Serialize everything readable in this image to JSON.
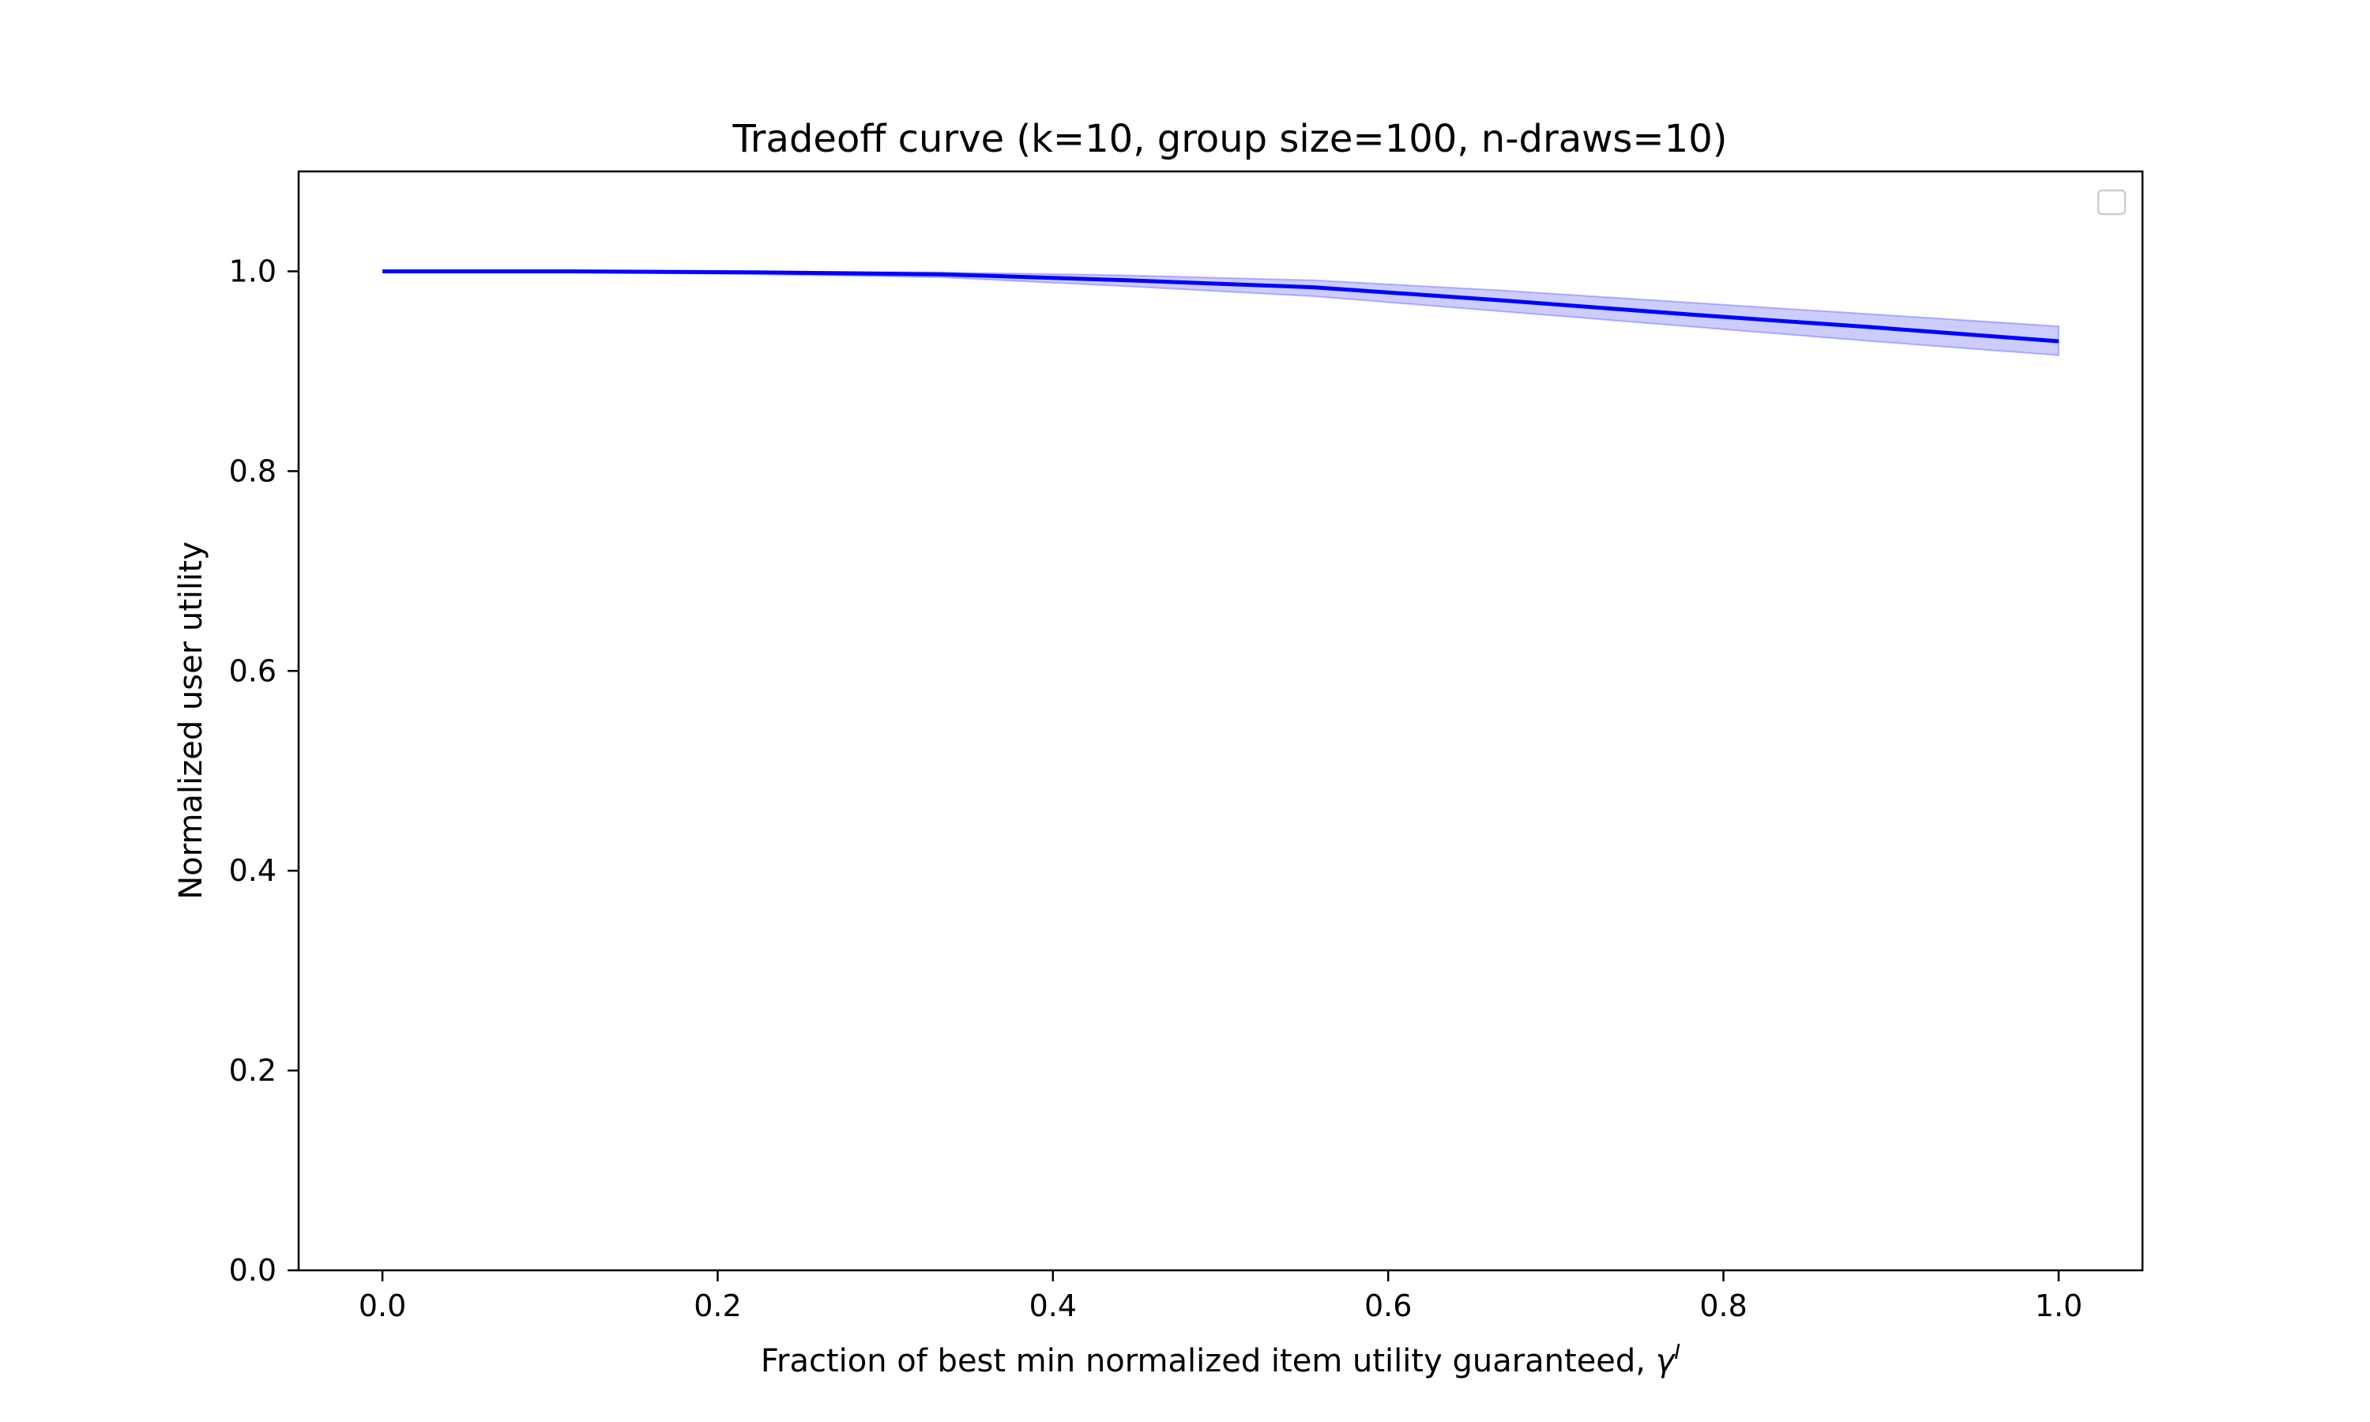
{
  "colors": {
    "line": "#0000ff",
    "band_fill": "#0000ff",
    "axes": "#000000",
    "background": "#ffffff"
  },
  "chart_data": {
    "type": "line",
    "title": "Tradeoff curve (k=10, group size=100, n-draws=10)",
    "xlabel_text": "Fraction of best min normalized item utility guaranteed, ",
    "xlabel_symbol": "γ",
    "xlabel_superscript": "I",
    "ylabel": "Normalized user utility",
    "xlim": [
      -0.05,
      1.05
    ],
    "ylim": [
      0.0,
      1.1
    ],
    "xticks": [
      0.0,
      0.2,
      0.4,
      0.6,
      0.8,
      1.0
    ],
    "xtick_labels": [
      "0.0",
      "0.2",
      "0.4",
      "0.6",
      "0.8",
      "1.0"
    ],
    "yticks": [
      0.0,
      0.2,
      0.4,
      0.6,
      0.8,
      1.0
    ],
    "ytick_labels": [
      "0.0",
      "0.2",
      "0.4",
      "0.6",
      "0.8",
      "1.0"
    ],
    "grid": false,
    "legend": {
      "placement": "upper right",
      "entries": []
    },
    "series": [
      {
        "x": [
          0.0,
          0.111,
          0.222,
          0.333,
          0.444,
          0.556,
          0.667,
          0.778,
          0.889,
          1.0
        ],
        "y": [
          1.0,
          1.0,
          0.999,
          0.997,
          0.991,
          0.984,
          0.971,
          0.957,
          0.944,
          0.93
        ],
        "lower": [
          1.0,
          0.999,
          0.997,
          0.994,
          0.985,
          0.975,
          0.96,
          0.945,
          0.93,
          0.916
        ],
        "upper": [
          1.0,
          1.0,
          1.0,
          0.999,
          0.996,
          0.991,
          0.981,
          0.969,
          0.957,
          0.945
        ]
      }
    ]
  }
}
